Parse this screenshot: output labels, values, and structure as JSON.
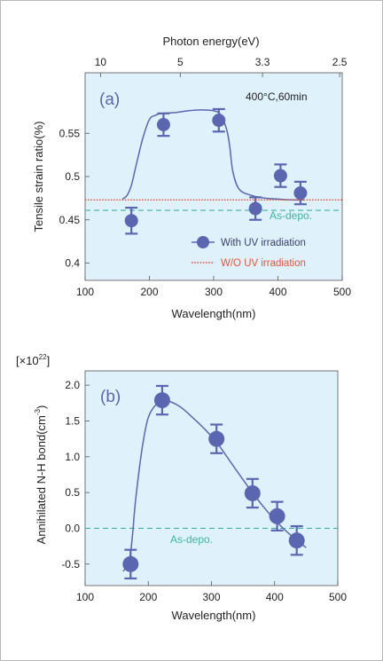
{
  "chart_data": [
    {
      "type": "line",
      "panel_label": "(a)",
      "annotation": "400°C,60min",
      "top_axis": {
        "label": "Photon energy(eV)",
        "ticks": [
          {
            "label": "10",
            "wavelength": 124
          },
          {
            "label": "5",
            "wavelength": 248
          },
          {
            "label": "3.3",
            "wavelength": 376
          },
          {
            "label": "2.5",
            "wavelength": 496
          }
        ]
      },
      "xlabel": "Wavelength(nm)",
      "ylabel": "Tensile strain ratio(%)",
      "xlim": [
        100,
        500
      ],
      "ylim": [
        0.38,
        0.62
      ],
      "xticks": [
        100,
        200,
        300,
        400,
        500
      ],
      "yticks": [
        0.4,
        0.45,
        0.5,
        0.55
      ],
      "ytick_labels": [
        "0.4",
        "0.45",
        "0.5",
        "0.55"
      ],
      "series": [
        {
          "name": "With UV irradiation",
          "x": [
            172,
            222,
            308,
            365,
            404,
            435
          ],
          "y": [
            0.449,
            0.56,
            0.565,
            0.463,
            0.501,
            0.481
          ],
          "err": [
            0.015,
            0.013,
            0.013,
            0.013,
            0.013,
            0.013
          ],
          "fit_x": [
            158,
            165,
            172,
            180,
            190,
            200,
            210,
            220,
            240,
            260,
            280,
            300,
            310,
            320,
            325,
            330,
            340,
            360,
            380,
            400,
            420,
            440
          ],
          "fit_y": [
            0.474,
            0.478,
            0.49,
            0.515,
            0.545,
            0.566,
            0.571,
            0.573,
            0.574,
            0.576,
            0.577,
            0.576,
            0.572,
            0.555,
            0.535,
            0.505,
            0.485,
            0.478,
            0.475,
            0.474,
            0.473,
            0.473
          ]
        },
        {
          "name": "W/O UV irradiation",
          "y_const": 0.473
        }
      ],
      "reference": {
        "label": "As-depo.",
        "y": 0.461
      }
    },
    {
      "type": "line",
      "panel_label": "(b)",
      "multiplier": "[×10",
      "multiplier_exp": "22",
      "multiplier_close": "]",
      "xlabel": "Wavelength(nm)",
      "ylabel": "Annihilated N-H bond(cm",
      "ylabel_exp": "-3",
      "ylabel_close": ")",
      "xlim": [
        100,
        500
      ],
      "ylim": [
        -0.8,
        2.2
      ],
      "xticks": [
        100,
        200,
        300,
        400,
        500
      ],
      "yticks": [
        -0.5,
        0,
        0.5,
        1.0,
        1.5,
        2.0
      ],
      "ytick_labels": [
        "-0.5",
        "0.0",
        "0.5",
        "1.0",
        "1.5",
        "2.0"
      ],
      "series": [
        {
          "x": [
            172,
            222,
            308,
            365,
            404,
            435
          ],
          "y": [
            -0.5,
            1.79,
            1.25,
            0.49,
            0.17,
            -0.17
          ],
          "err": [
            0.2,
            0.2,
            0.2,
            0.2,
            0.2,
            0.2
          ],
          "fit_x": [
            160,
            165,
            170,
            175,
            180,
            190,
            200,
            215,
            230,
            250,
            270,
            290,
            310,
            330,
            350,
            370,
            390,
            410,
            430,
            450
          ],
          "fit_y": [
            -0.6,
            -0.55,
            -0.45,
            -0.1,
            0.4,
            1.1,
            1.55,
            1.75,
            1.78,
            1.7,
            1.55,
            1.38,
            1.18,
            0.93,
            0.68,
            0.44,
            0.22,
            0.03,
            -0.13,
            -0.27
          ]
        }
      ],
      "reference": {
        "label": "As-depo.",
        "y": 0
      }
    }
  ],
  "legend": [
    {
      "label": "With UV irradiation",
      "color": "#5b66b0"
    },
    {
      "label": "W/O UV irradiation",
      "color": "#e2553c"
    }
  ],
  "colors": {
    "plot_bg": "#dff1fb",
    "series": "#5b66b0",
    "reference": "#3fb3a3",
    "without_uv": "#e2553c"
  }
}
